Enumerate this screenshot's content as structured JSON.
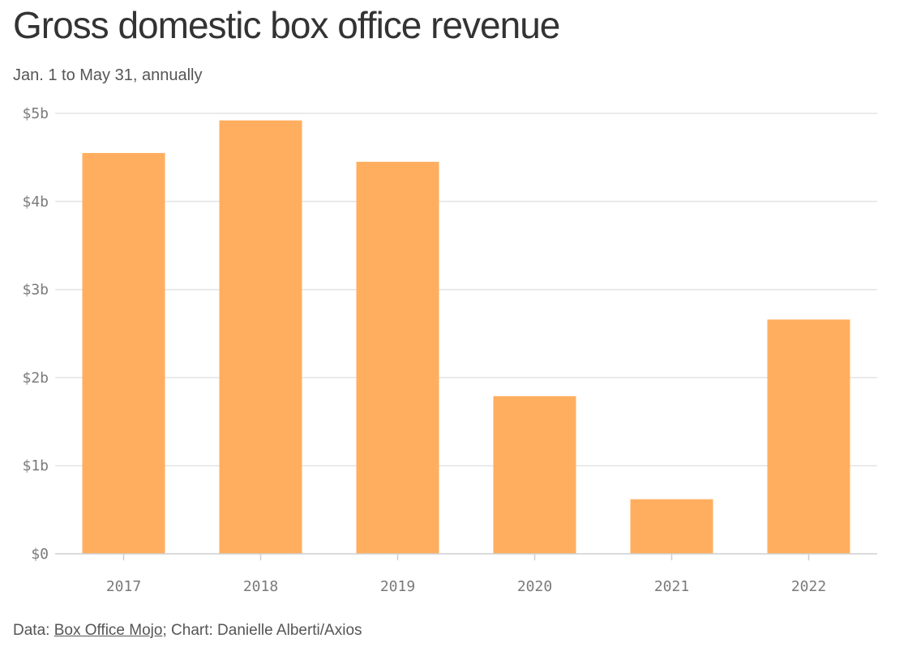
{
  "header": {
    "title": "Gross domestic box office revenue",
    "subtitle": "Jan. 1 to May 31, annually"
  },
  "footer": {
    "data_prefix": "Data: ",
    "source_link": "Box Office Mojo",
    "credit": "; Chart: Danielle Alberti/Axios"
  },
  "colors": {
    "bar": "#ffae5f",
    "grid": "#e3e3e3",
    "axis": "#cfcfcf",
    "tick_text": "#7a7a7a"
  },
  "chart_data": {
    "type": "bar",
    "title": "Gross domestic box office revenue",
    "subtitle": "Jan. 1 to May 31, annually",
    "xlabel": "",
    "ylabel": "",
    "categories": [
      "2017",
      "2018",
      "2019",
      "2020",
      "2021",
      "2022"
    ],
    "values": [
      4.55,
      4.92,
      4.45,
      1.79,
      0.62,
      2.66
    ],
    "unit": "billion USD",
    "ylim": [
      0,
      5
    ],
    "yticks": [
      0,
      1,
      2,
      3,
      4,
      5
    ],
    "ytick_labels": [
      "$0",
      "$1b",
      "$2b",
      "$3b",
      "$4b",
      "$5b"
    ],
    "grid": true,
    "legend": "none"
  }
}
